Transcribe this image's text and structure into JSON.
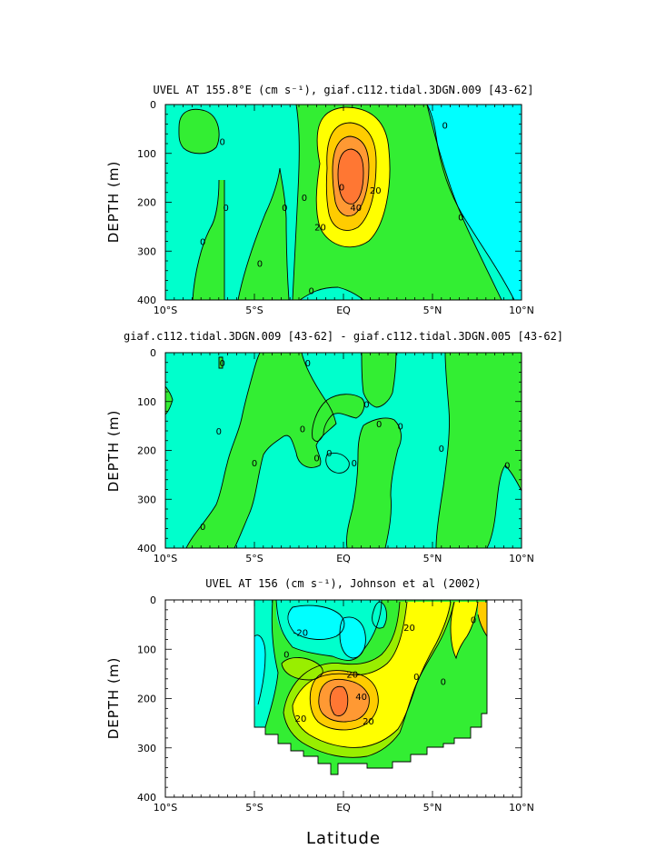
{
  "chart_data": [
    {
      "type": "contour",
      "title": "UVEL AT 155.8°E (cm s⁻¹), giaf.c112.tidal.3DGN.009 [43-62]",
      "ylabel": "DEPTH (m)",
      "xlabel": "",
      "xlim": [
        -10,
        10
      ],
      "ylim": [
        400,
        0
      ],
      "xticks": [
        -10,
        -5,
        0,
        5,
        10
      ],
      "xtick_labels": [
        "10°S",
        "5°S",
        "EQ",
        "5°N",
        "10°N"
      ],
      "yticks": [
        0,
        100,
        200,
        300,
        400
      ],
      "contour_labels": [
        {
          "text": "0",
          "x": -6.8,
          "y": 75
        },
        {
          "text": "0",
          "x": -6.6,
          "y": 210
        },
        {
          "text": "0",
          "x": -7.9,
          "y": 280
        },
        {
          "text": "0",
          "x": -4.7,
          "y": 325
        },
        {
          "text": "0",
          "x": -3.3,
          "y": 210
        },
        {
          "text": "0",
          "x": -2.2,
          "y": 190
        },
        {
          "text": "0",
          "x": -1.8,
          "y": 380
        },
        {
          "text": "0",
          "x": 5.7,
          "y": 42
        },
        {
          "text": "0",
          "x": 6.6,
          "y": 230
        },
        {
          "text": "20",
          "x": 1.8,
          "y": 175
        },
        {
          "text": "40",
          "x": 0.7,
          "y": 210
        },
        {
          "text": "20",
          "x": -1.3,
          "y": 250
        },
        {
          "text": "0",
          "x": -0.1,
          "y": 168
        }
      ]
    },
    {
      "type": "contour",
      "title": "giaf.c112.tidal.3DGN.009 [43-62] - giaf.c112.tidal.3DGN.005 [43-62]",
      "ylabel": "DEPTH (m)",
      "xlabel": "",
      "xlim": [
        -10,
        10
      ],
      "ylim": [
        400,
        0
      ],
      "xticks": [
        -10,
        -5,
        0,
        5,
        10
      ],
      "xtick_labels": [
        "10°S",
        "5°S",
        "EQ",
        "5°N",
        "10°N"
      ],
      "yticks": [
        0,
        100,
        200,
        300,
        400
      ],
      "contour_labels": [
        {
          "text": "0",
          "x": -6.8,
          "y": 20
        },
        {
          "text": "0",
          "x": -2.0,
          "y": 20
        },
        {
          "text": "0",
          "x": -7.0,
          "y": 160
        },
        {
          "text": "0",
          "x": -5.0,
          "y": 225
        },
        {
          "text": "0",
          "x": -2.3,
          "y": 155
        },
        {
          "text": "0",
          "x": -0.8,
          "y": 205
        },
        {
          "text": "0",
          "x": -1.5,
          "y": 215
        },
        {
          "text": "0",
          "x": 1.3,
          "y": 105
        },
        {
          "text": "0",
          "x": 2.0,
          "y": 145
        },
        {
          "text": "0",
          "x": 3.2,
          "y": 150
        },
        {
          "text": "0",
          "x": 0.6,
          "y": 225
        },
        {
          "text": "0",
          "x": 5.5,
          "y": 195
        },
        {
          "text": "0",
          "x": 9.2,
          "y": 230
        },
        {
          "text": "0",
          "x": -7.9,
          "y": 355
        }
      ]
    },
    {
      "type": "contour",
      "title": "UVEL AT 156 (cm s⁻¹), Johnson et al (2002)",
      "ylabel": "DEPTH (m)",
      "xlabel": "Latitude",
      "xlim": [
        -10,
        10
      ],
      "ylim": [
        400,
        0
      ],
      "xticks": [
        -10,
        -5,
        0,
        5,
        10
      ],
      "xtick_labels": [
        "10°S",
        "5°S",
        "EQ",
        "5°N",
        "10°N"
      ],
      "yticks": [
        0,
        100,
        200,
        300,
        400
      ],
      "contour_labels": [
        {
          "text": "-20",
          "x": -2.4,
          "y": 65
        },
        {
          "text": "0",
          "x": -3.2,
          "y": 110
        },
        {
          "text": "20",
          "x": 3.7,
          "y": 55
        },
        {
          "text": "0",
          "x": 7.3,
          "y": 40
        },
        {
          "text": "20",
          "x": 0.5,
          "y": 150
        },
        {
          "text": "40",
          "x": 1.0,
          "y": 195
        },
        {
          "text": "20",
          "x": -2.4,
          "y": 240
        },
        {
          "text": "20",
          "x": 1.4,
          "y": 245
        },
        {
          "text": "0",
          "x": 4.1,
          "y": 155
        },
        {
          "text": "0",
          "x": 5.6,
          "y": 165
        }
      ]
    }
  ],
  "colors": {
    "cyan": "#00ffff",
    "aqua_green": "#00ffcc",
    "green": "#33ee33",
    "lime": "#99ee00",
    "yellow": "#ffff00",
    "gold": "#ffcc00",
    "orange": "#ff9933",
    "dark_orange": "#ff7733"
  }
}
